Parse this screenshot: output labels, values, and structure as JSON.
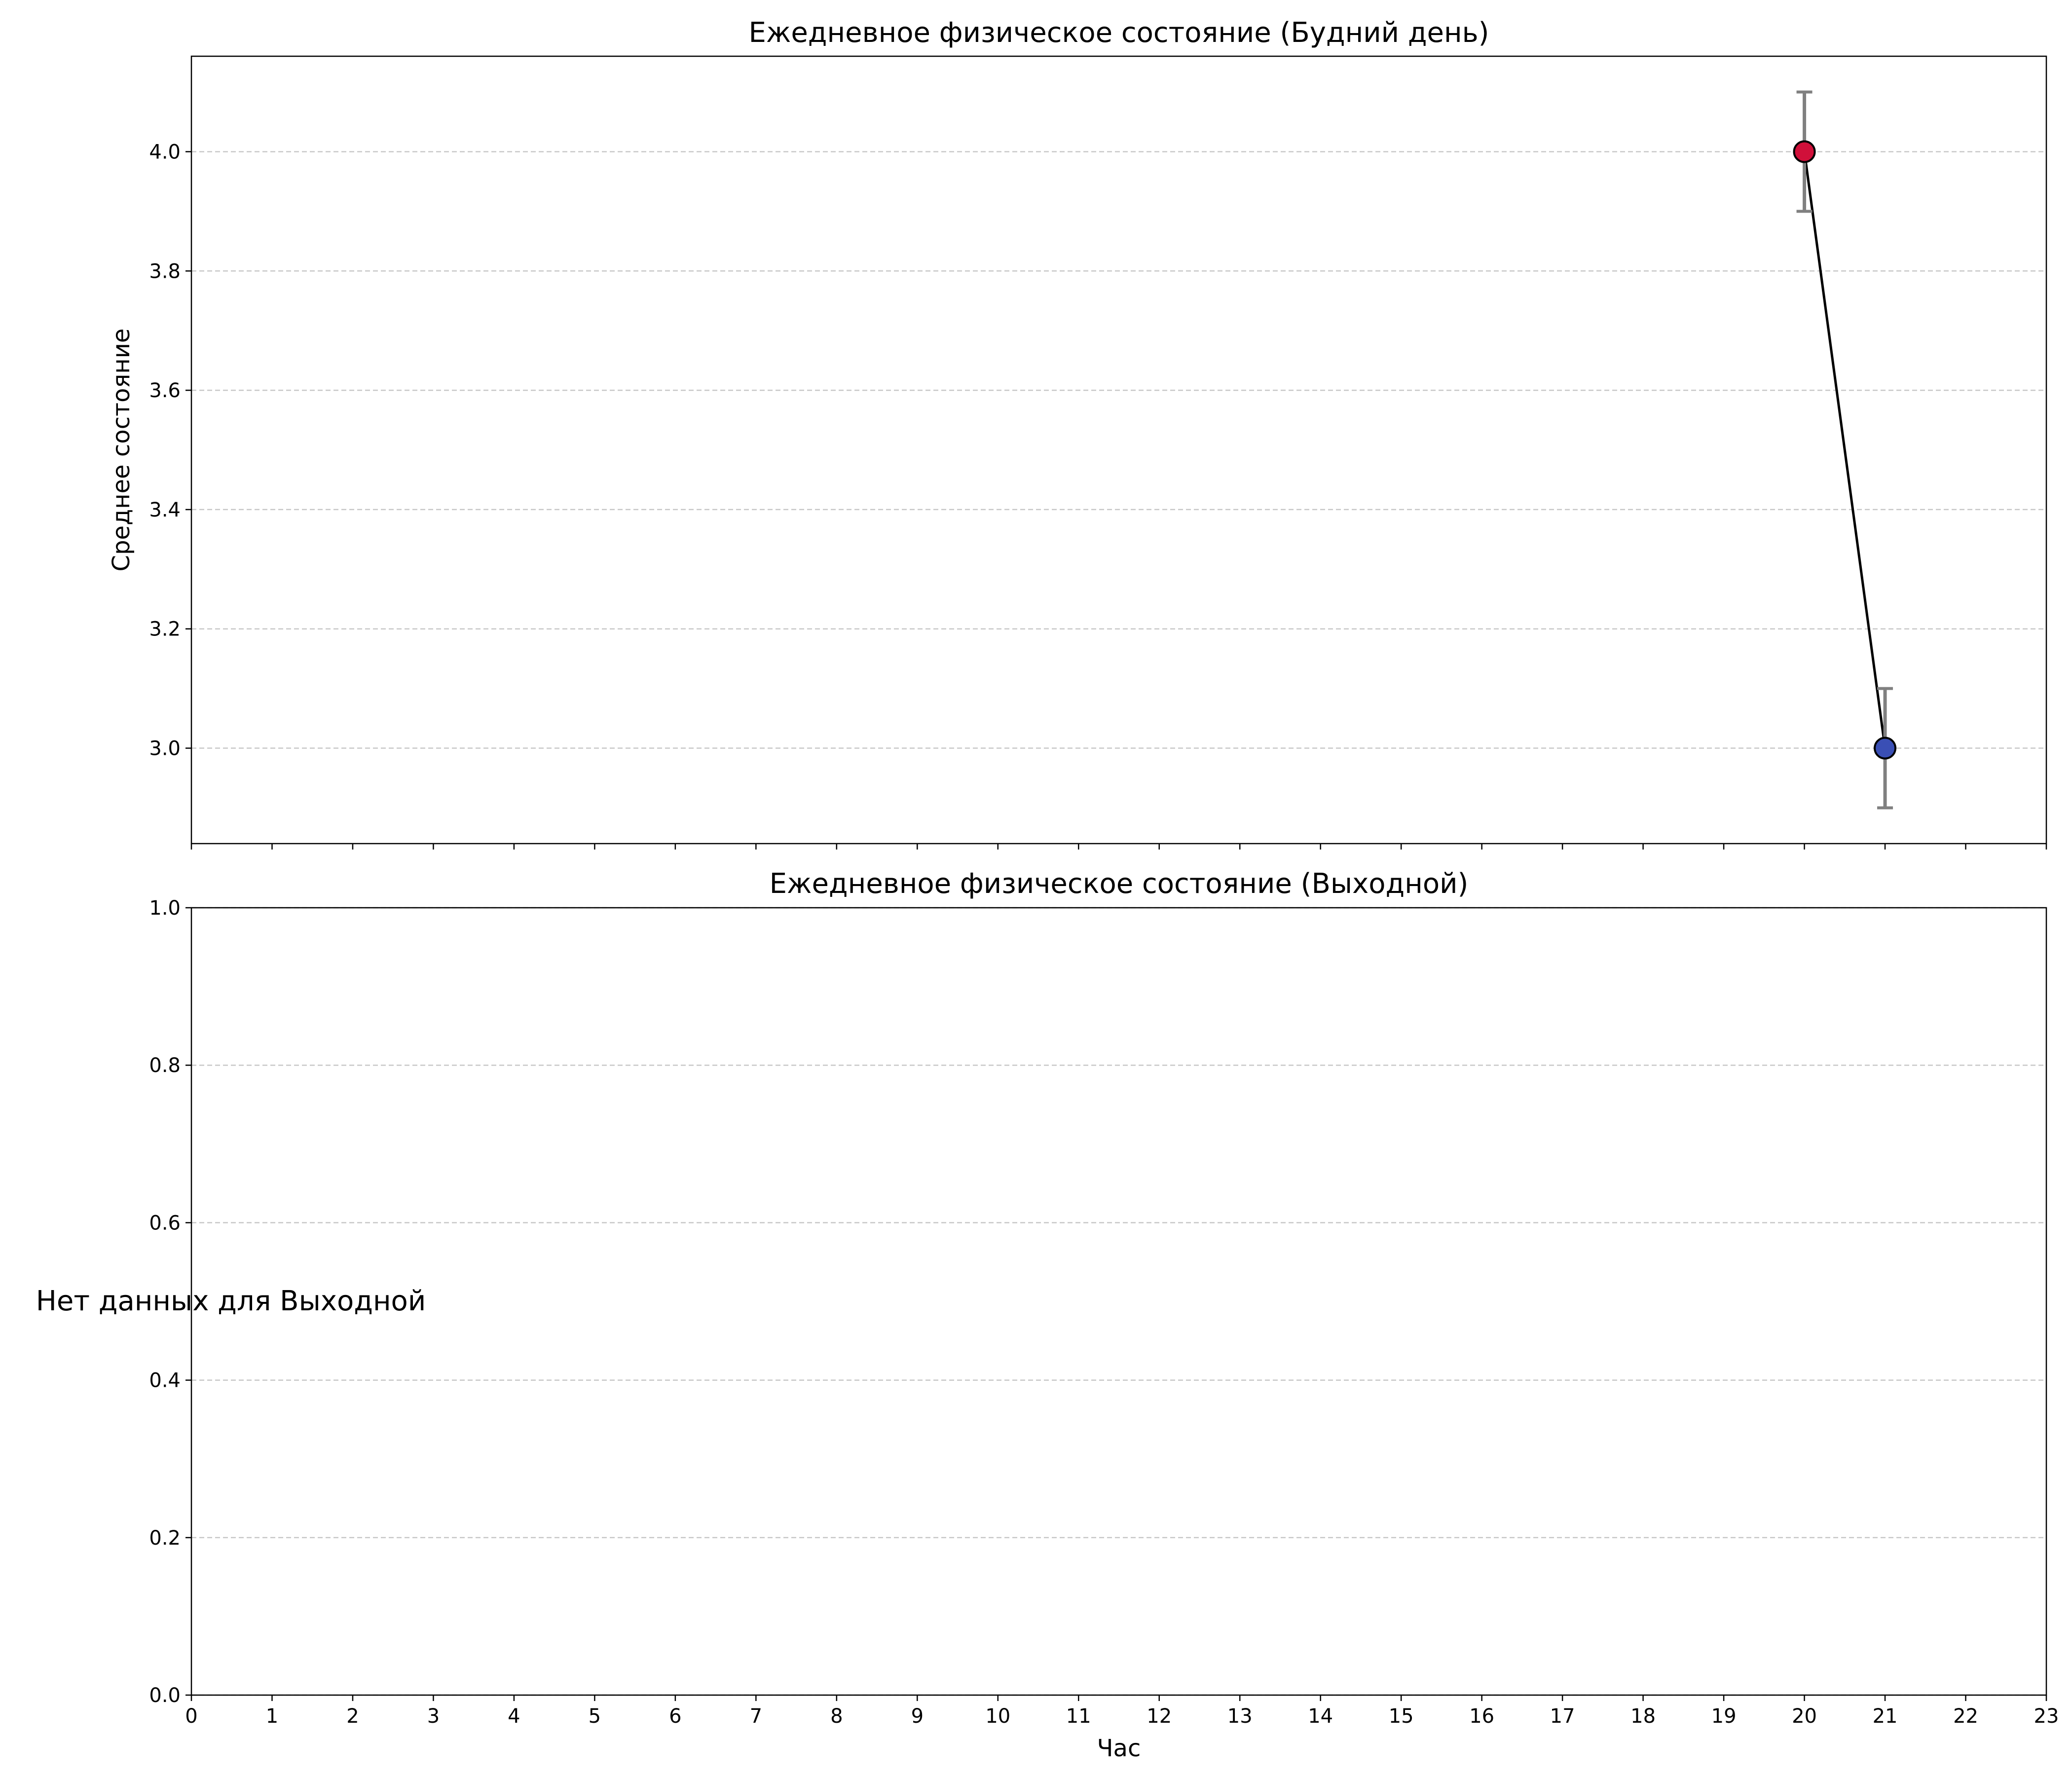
{
  "chart_data": [
    {
      "type": "line",
      "title": "Ежедневное физическое состояние (Будний день)",
      "xlabel": "",
      "ylabel": "Среднее состояние",
      "xlim": [
        0,
        23
      ],
      "ylim": [
        2.84,
        4.16
      ],
      "xticks": [
        0,
        1,
        2,
        3,
        4,
        5,
        6,
        7,
        8,
        9,
        10,
        11,
        12,
        13,
        14,
        15,
        16,
        17,
        18,
        19,
        20,
        21,
        22,
        23
      ],
      "show_xtick_labels": false,
      "yticks": [
        "3.0",
        "3.2",
        "3.4",
        "3.6",
        "3.8",
        "4.0"
      ],
      "grid": "y, dashed",
      "line_color": "#000000",
      "errorbar_color": "#808080",
      "points": [
        {
          "x": 20,
          "y": 4.0,
          "err": 0.1,
          "color": "#d0103a"
        },
        {
          "x": 21,
          "y": 3.0,
          "err": 0.1,
          "color": "#3a4fb5"
        }
      ]
    },
    {
      "type": "line",
      "title": "Ежедневное физическое состояние (Выходной)",
      "xlabel": "Час",
      "ylabel": "",
      "xlim": [
        0,
        23
      ],
      "ylim": [
        0,
        1
      ],
      "xticks": [
        0,
        1,
        2,
        3,
        4,
        5,
        6,
        7,
        8,
        9,
        10,
        11,
        12,
        13,
        14,
        15,
        16,
        17,
        18,
        19,
        20,
        21,
        22,
        23
      ],
      "show_xtick_labels": true,
      "yticks": [
        "0.0",
        "0.2",
        "0.4",
        "0.6",
        "0.8",
        "1.0"
      ],
      "grid": "y, dashed",
      "points": [],
      "annotation": "Нет данных для Выходной"
    }
  ]
}
